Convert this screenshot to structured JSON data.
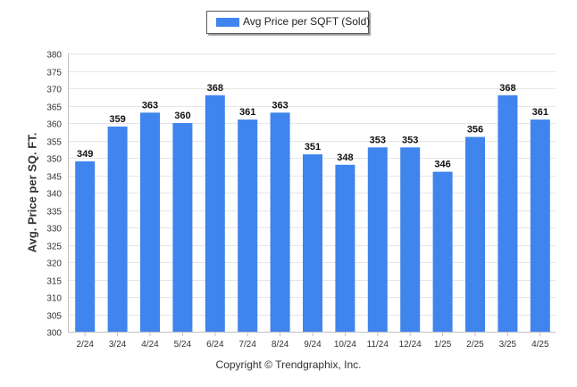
{
  "chart_data": {
    "type": "bar",
    "categories": [
      "2/24",
      "3/24",
      "4/24",
      "5/24",
      "6/24",
      "7/24",
      "8/24",
      "9/24",
      "10/24",
      "11/24",
      "12/24",
      "1/25",
      "2/25",
      "3/25",
      "4/25"
    ],
    "series": [
      {
        "name": "Avg Price per SQFT (Sold)",
        "values": [
          349,
          359,
          363,
          360,
          368,
          361,
          363,
          351,
          348,
          353,
          353,
          346,
          356,
          368,
          361
        ]
      }
    ],
    "ylabel": "Avg. Price per SQ. FT.",
    "xlabel": "",
    "ylim": [
      300,
      380
    ],
    "yticks": [
      300,
      305,
      310,
      315,
      320,
      325,
      330,
      335,
      340,
      345,
      350,
      355,
      360,
      365,
      370,
      375,
      380
    ],
    "grid": true,
    "legend_position": "top-center",
    "bar_color": "#4084ee",
    "credit": "Copyright © Trendgraphix, Inc."
  }
}
